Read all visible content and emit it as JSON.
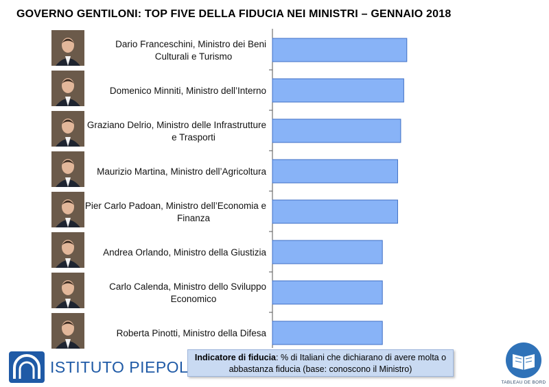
{
  "title": "GOVERNO GENTILONI: TOP FIVE DELLA FIDUCIA NEI MINISTRI – GENNAIO 2018",
  "chart_data": {
    "type": "bar",
    "orientation": "horizontal",
    "categories": [
      [
        "Dario Franceschini, Ministro dei Beni",
        "Culturali e Turismo"
      ],
      [
        "Domenico Minniti, Ministro dell’Interno"
      ],
      [
        "Graziano Delrio, Ministro delle Infrastrutture",
        "e Trasporti"
      ],
      [
        "Maurizio Martina, Ministro dell’Agricoltura"
      ],
      [
        "Pier Carlo Padoan, Ministro dell’Economia e",
        "Finanza"
      ],
      [
        "Andrea Orlando, Ministro della Giustizia"
      ],
      [
        "Carlo Calenda, Ministro dello Sviluppo",
        "Economico"
      ],
      [
        "Roberta Pinotti, Ministro della Difesa"
      ]
    ],
    "values": [
      44,
      43,
      42,
      41,
      41,
      36,
      36,
      36
    ],
    "xlim": [
      0,
      100
    ],
    "bar_color": "#88b3f7",
    "bar_border_color": "#3f6fc4",
    "grid": false
  },
  "legend": {
    "label": "Indicatore di fiducia",
    "text": ": % di Italiani che dichiarano di avere molta o abbastanza fiducia (base: conoscono il Ministro)"
  },
  "logos": {
    "piepoli_text": "ISTITUTO PIEPOLI",
    "tableau_text": "TABLEAU DE BORD"
  }
}
